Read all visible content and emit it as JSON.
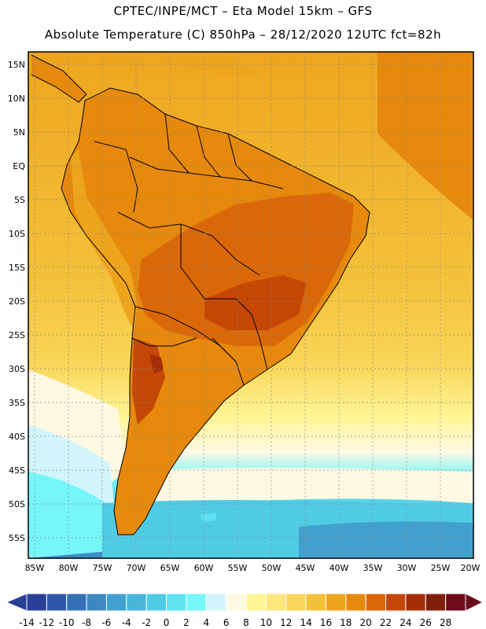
{
  "title_line1": "CPTEC/INPE/MCT –  Eta Model 15km – GFS",
  "title_line2": "Absolute Temperature (C) 850hPa – 28/12/2020 12UTC fct=82h",
  "latitude_labels": [
    "15N",
    "10N",
    "5N",
    "EQ",
    "5S",
    "10S",
    "15S",
    "20S",
    "25S",
    "30S",
    "35S",
    "40S",
    "45S",
    "50S",
    "55S"
  ],
  "longitude_labels": [
    "85W",
    "80W",
    "75W",
    "70W",
    "65W",
    "60W",
    "55W",
    "50W",
    "45W",
    "40W",
    "35W",
    "30W",
    "25W",
    "20W"
  ],
  "colorbar": {
    "labels": [
      "-14",
      "-12",
      "-10",
      "-8",
      "-6",
      "-4",
      "-2",
      "0",
      "2",
      "4",
      "6",
      "8",
      "10",
      "12",
      "14",
      "16",
      "18",
      "20",
      "22",
      "24",
      "26",
      "28"
    ],
    "colors": [
      "#2a3f96",
      "#2d57a6",
      "#3571b5",
      "#3c89c2",
      "#41a0cd",
      "#47b6d9",
      "#50cbe4",
      "#5ee3ef",
      "#76f6f9",
      "#d2f5fb",
      "#fff9e4",
      "#fff594",
      "#fde67a",
      "#f9d65a",
      "#f4c13a",
      "#eea51e",
      "#e6890c",
      "#da6808",
      "#c44706",
      "#a52e06",
      "#7e1f0c",
      "#6e0a1a"
    ]
  }
}
